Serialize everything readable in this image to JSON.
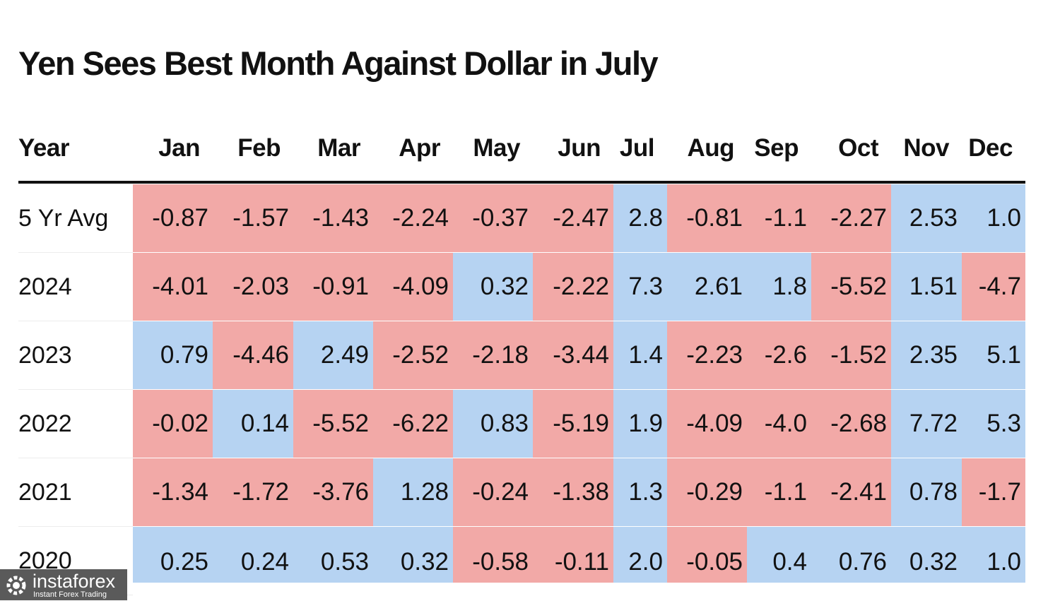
{
  "title": "Yen Sees Best Month Against Dollar in July",
  "colors": {
    "positive": "#b6d3f2",
    "negative": "#f2a9a7"
  },
  "watermark": {
    "name": "instaforex",
    "tagline": "Instant Forex Trading",
    "icon": "gear-logo-icon"
  },
  "chart_data": {
    "type": "table",
    "title": "Yen Sees Best Month Against Dollar in July",
    "row_header": "Year",
    "columns": [
      "Jan",
      "Feb",
      "Mar",
      "Apr",
      "May",
      "Jun",
      "Jul",
      "Aug",
      "Sep",
      "Oct",
      "Nov",
      "Dec"
    ],
    "rows": [
      {
        "label": "5 Yr Avg",
        "values": [
          "-0.87",
          "-1.57",
          "-1.43",
          "-2.24",
          "-0.37",
          "-2.47",
          "2.8",
          "-0.81",
          "-1.1",
          "-2.27",
          "2.53",
          "1.0"
        ]
      },
      {
        "label": "2024",
        "values": [
          "-4.01",
          "-2.03",
          "-0.91",
          "-4.09",
          "0.32",
          "-2.22",
          "7.3",
          "2.61",
          "1.8",
          "-5.52",
          "1.51",
          "-4.7"
        ]
      },
      {
        "label": "2023",
        "values": [
          "0.79",
          "-4.46",
          "2.49",
          "-2.52",
          "-2.18",
          "-3.44",
          "1.4",
          "-2.23",
          "-2.6",
          "-1.52",
          "2.35",
          "5.1"
        ]
      },
      {
        "label": "2022",
        "values": [
          "-0.02",
          "0.14",
          "-5.52",
          "-6.22",
          "0.83",
          "-5.19",
          "1.9",
          "-4.09",
          "-4.0",
          "-2.68",
          "7.72",
          "5.3"
        ]
      },
      {
        "label": "2021",
        "values": [
          "-1.34",
          "-1.72",
          "-3.76",
          "1.28",
          "-0.24",
          "-1.38",
          "1.3",
          "-0.29",
          "-1.1",
          "-2.41",
          "0.78",
          "-1.7"
        ]
      },
      {
        "label": "2020",
        "values": [
          "0.25",
          "0.24",
          "0.53",
          "0.32",
          "-0.58",
          "-0.11",
          "2.0",
          "-0.05",
          "0.4",
          "0.76",
          "0.32",
          "1.0"
        ]
      }
    ]
  }
}
